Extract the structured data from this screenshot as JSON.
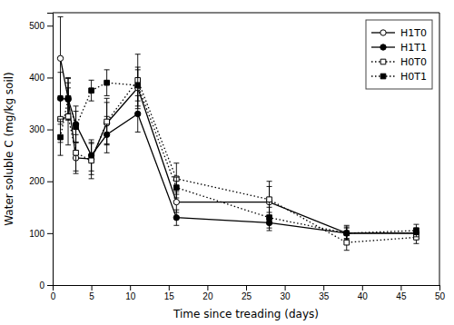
{
  "chart_data": {
    "type": "line",
    "xlabel": "Time since treading (days)",
    "ylabel": "Water soluble C (mg/kg soil)",
    "xlim": [
      0,
      50
    ],
    "ylim": [
      0,
      525
    ],
    "xticks": [
      0,
      5,
      10,
      15,
      20,
      25,
      30,
      35,
      40,
      45,
      50
    ],
    "yticks": [
      0,
      100,
      200,
      300,
      400,
      500
    ],
    "grid": false,
    "legend": "top-right",
    "x": [
      1,
      2,
      3,
      5,
      7,
      11,
      16,
      28,
      38,
      47
    ],
    "series": [
      {
        "name": "H1T0",
        "color": "black",
        "marker": "circle-open",
        "line_style": "solid",
        "values": [
          437,
          360,
          245,
          243,
          312,
          380,
          160,
          160,
          100,
          100
        ],
        "errors": [
          80,
          40,
          30,
          30,
          40,
          40,
          20,
          40,
          15,
          10
        ]
      },
      {
        "name": "H1T1",
        "color": "black",
        "marker": "circle",
        "line_style": "solid",
        "values": [
          360,
          358,
          310,
          250,
          290,
          330,
          130,
          120,
          100,
          100
        ],
        "errors": [
          50,
          40,
          35,
          30,
          35,
          35,
          15,
          15,
          10,
          10
        ]
      },
      {
        "name": "H0T0",
        "color": "black",
        "marker": "square-open",
        "line_style": "dotted",
        "values": [
          320,
          325,
          255,
          240,
          315,
          395,
          205,
          165,
          82,
          92
        ],
        "errors": [
          45,
          55,
          35,
          35,
          45,
          50,
          30,
          25,
          15,
          12
        ]
      },
      {
        "name": "H0T1",
        "color": "black",
        "marker": "square",
        "line_style": "dotted",
        "values": [
          285,
          360,
          305,
          375,
          390,
          385,
          188,
          130,
          100,
          105
        ],
        "errors": [
          35,
          30,
          30,
          20,
          25,
          30,
          20,
          20,
          12,
          12
        ]
      }
    ]
  }
}
